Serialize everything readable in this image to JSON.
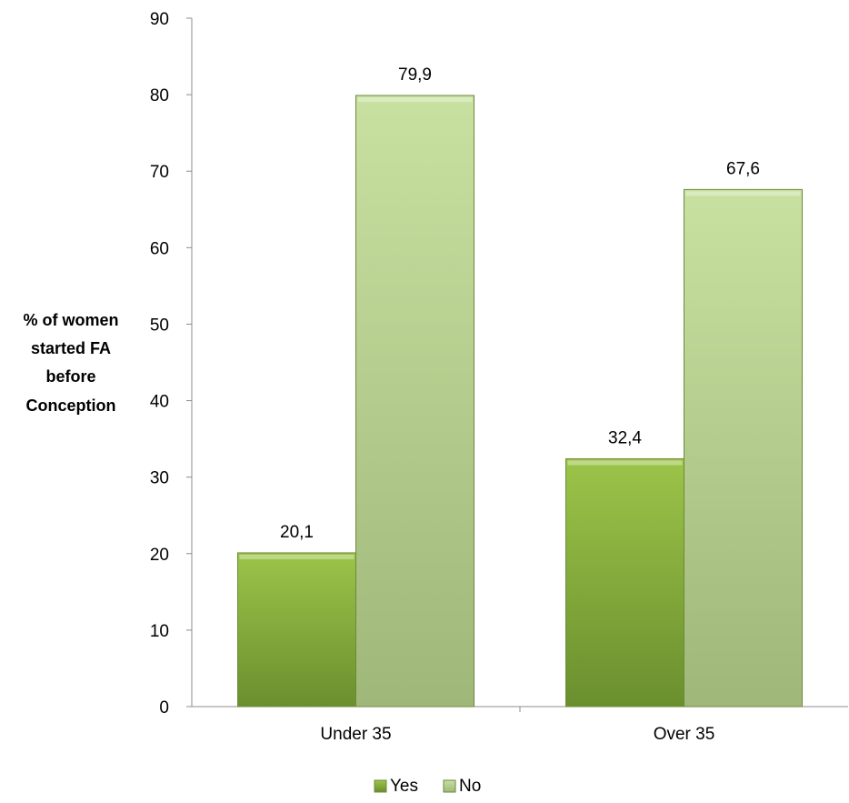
{
  "chart_data": {
    "type": "bar",
    "title": "",
    "categories": [
      "Under 35",
      "Over 35"
    ],
    "series": [
      {
        "name": "Yes",
        "values": [
          20.1,
          32.4
        ],
        "value_labels": [
          "20,1",
          "32,4"
        ],
        "color": "#7ea53a"
      },
      {
        "name": "No",
        "values": [
          79.9,
          67.6
        ],
        "value_labels": [
          "79,9",
          "67,6"
        ],
        "color": "#b3cd8a"
      }
    ],
    "ylabel_lines": [
      "% of women",
      "started FA",
      "before",
      "Conception"
    ],
    "xlabel": "",
    "ylim": [
      0,
      90
    ],
    "yticks": [
      0,
      10,
      20,
      30,
      40,
      50,
      60,
      70,
      80,
      90
    ],
    "grid": false,
    "legend": "bottom"
  }
}
